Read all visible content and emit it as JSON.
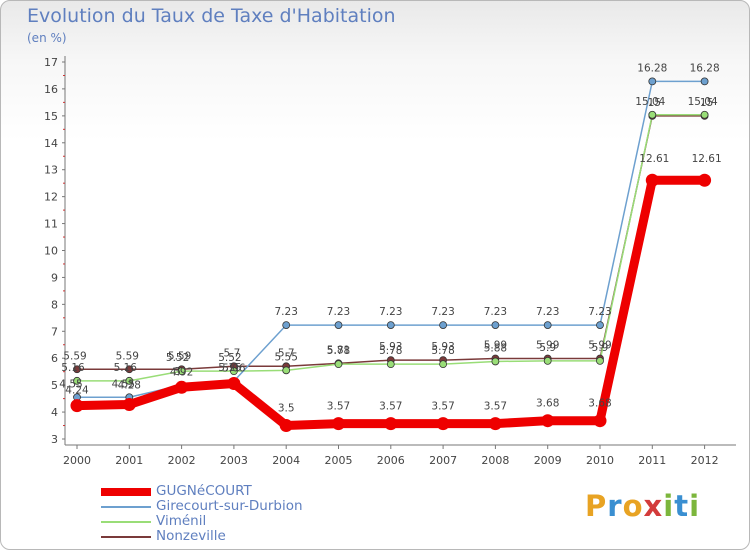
{
  "title": "Evolution du Taux de Taxe d'Habitation",
  "subtitle": "(en %)",
  "logo": {
    "text": "Proxiti",
    "letters": [
      "P",
      "r",
      "o",
      "x",
      "i",
      "t",
      "i"
    ],
    "colors": [
      "#e8a323",
      "#3a8fd1",
      "#e8a323",
      "#d33b3b",
      "#7cb63c",
      "#3a8fd1",
      "#7cb63c"
    ]
  },
  "chart_data": {
    "type": "line",
    "x": [
      "2000",
      "2001",
      "2002",
      "2003",
      "2004",
      "2005",
      "2006",
      "2007",
      "2008",
      "2009",
      "2010",
      "2011",
      "2012"
    ],
    "ylim": [
      3,
      17
    ],
    "yticks": [
      "3",
      "4",
      "5",
      "6",
      "7",
      "8",
      "9",
      "10",
      "11",
      "12",
      "13",
      "14",
      "15",
      "16",
      "17"
    ],
    "grid": false,
    "legend_position": "bottom-left",
    "series": [
      {
        "name": "GUGNéCOURT",
        "color": "#ee0000",
        "values": [
          4.24,
          4.28,
          4.92,
          5.06,
          3.5,
          3.57,
          3.57,
          3.57,
          3.57,
          3.68,
          3.68,
          12.61,
          12.61
        ],
        "labels": [
          "4.24",
          "4.28",
          "4.92",
          "5.06",
          "3.5",
          "3.57",
          "3.57",
          "3.57",
          "3.57",
          "3.68",
          "3.68",
          "12.61",
          "12.61"
        ]
      },
      {
        "name": "Girecourt-sur-Durbion",
        "color": "#6da0cf",
        "values": [
          4.55,
          4.55,
          5.0,
          5.15,
          7.23,
          7.23,
          7.23,
          7.23,
          7.23,
          7.23,
          7.23,
          16.28,
          16.28
        ],
        "labels": [
          "4.55",
          "4.55",
          "5",
          "5.15",
          "7.23",
          "7.23",
          "7.23",
          "7.23",
          "7.23",
          "7.23",
          "7.23",
          "16.28",
          "16.28"
        ]
      },
      {
        "name": "Viménil",
        "color": "#99dd77",
        "values": [
          5.16,
          5.16,
          5.52,
          5.52,
          5.55,
          5.78,
          5.78,
          5.78,
          5.88,
          5.9,
          5.9,
          15.04,
          15.04
        ],
        "labels": [
          "5.16",
          "5.16",
          "5.52",
          "5.52",
          "5.55",
          "5.78",
          "5.78",
          "5.78",
          "5.88",
          "5.9",
          "5.9",
          "15.04",
          "15.04"
        ]
      },
      {
        "name": "Nonzeville",
        "color": "#7a3a3a",
        "values": [
          5.59,
          5.59,
          5.59,
          5.7,
          5.7,
          5.81,
          5.93,
          5.93,
          5.99,
          5.99,
          5.99,
          15.0,
          15.0
        ],
        "labels": [
          "5.59",
          "5.59",
          "5.59",
          "5.7",
          "5.7",
          "5.81",
          "5.93",
          "5.93",
          "5.99",
          "5.99",
          "5.99",
          "15",
          "15"
        ]
      }
    ]
  }
}
